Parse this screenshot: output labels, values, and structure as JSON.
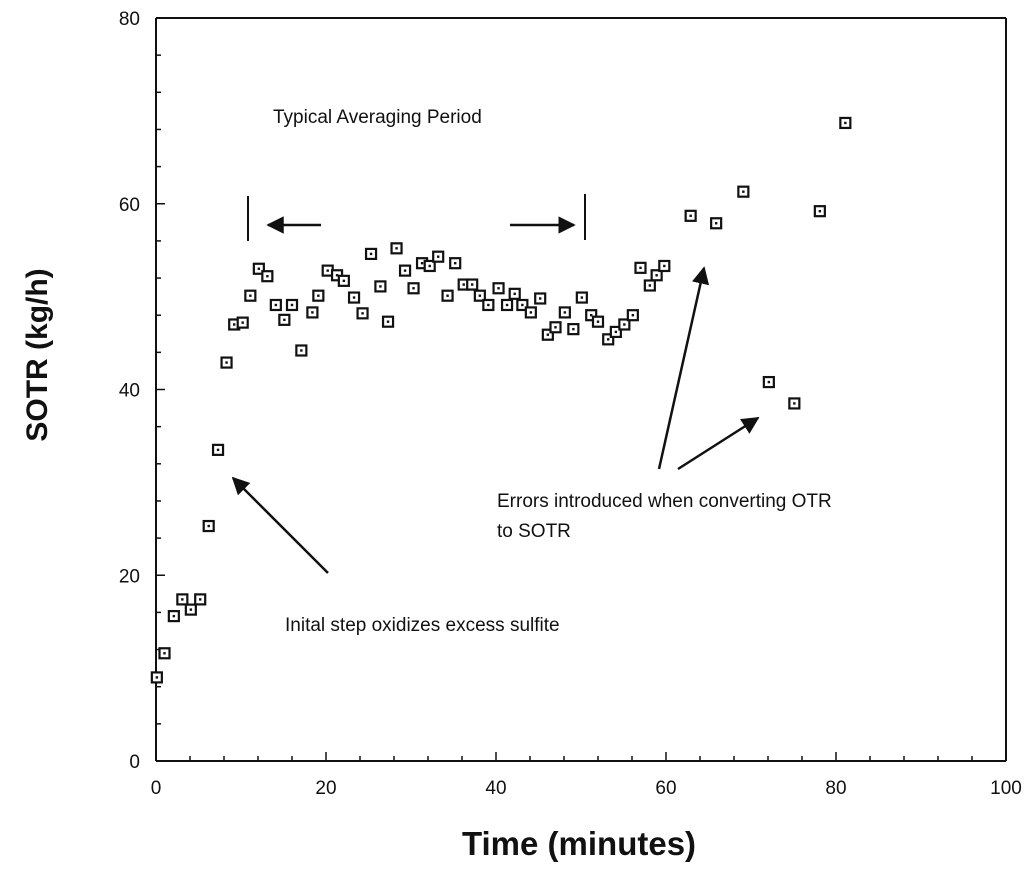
{
  "chart_data": {
    "type": "scatter",
    "title": "",
    "xlabel": "Time (minutes)",
    "ylabel": "SOTR  (kg/h)",
    "xlim": [
      0,
      100
    ],
    "ylim": [
      0,
      80
    ],
    "x_ticks": [
      0,
      20,
      40,
      60,
      80,
      100
    ],
    "y_ticks": [
      0,
      20,
      40,
      60,
      80
    ],
    "x_tick_labels": [
      "0",
      "20",
      "40",
      "60",
      "80",
      "100"
    ],
    "y_tick_labels": [
      "0",
      "20",
      "40",
      "60",
      "80"
    ],
    "grid": false,
    "legend": "none",
    "marker": "open-square",
    "series": [
      {
        "points": [
          [
            0.1,
            9.0
          ],
          [
            1.0,
            11.6
          ],
          [
            2.1,
            15.6
          ],
          [
            3.1,
            17.4
          ],
          [
            4.1,
            16.3
          ],
          [
            5.2,
            17.4
          ],
          [
            6.2,
            25.3
          ],
          [
            7.3,
            33.5
          ],
          [
            8.3,
            42.9
          ],
          [
            9.2,
            47.0
          ],
          [
            10.2,
            47.2
          ],
          [
            11.1,
            50.1
          ],
          [
            12.1,
            53.0
          ],
          [
            13.1,
            52.2
          ],
          [
            14.1,
            49.1
          ],
          [
            15.1,
            47.5
          ],
          [
            16.0,
            49.1
          ],
          [
            17.1,
            44.2
          ],
          [
            18.4,
            48.3
          ],
          [
            19.1,
            50.1
          ],
          [
            20.2,
            52.8
          ],
          [
            21.3,
            52.3
          ],
          [
            22.1,
            51.7
          ],
          [
            23.3,
            49.9
          ],
          [
            24.3,
            48.2
          ],
          [
            25.3,
            54.6
          ],
          [
            26.4,
            51.1
          ],
          [
            27.3,
            47.3
          ],
          [
            28.3,
            55.2
          ],
          [
            29.3,
            52.8
          ],
          [
            30.3,
            50.9
          ],
          [
            31.3,
            53.6
          ],
          [
            32.2,
            53.3
          ],
          [
            33.2,
            54.3
          ],
          [
            34.3,
            50.1
          ],
          [
            35.2,
            53.6
          ],
          [
            36.2,
            51.3
          ],
          [
            37.2,
            51.3
          ],
          [
            38.1,
            50.1
          ],
          [
            39.1,
            49.1
          ],
          [
            40.3,
            50.9
          ],
          [
            41.3,
            49.1
          ],
          [
            42.2,
            50.3
          ],
          [
            43.1,
            49.1
          ],
          [
            44.1,
            48.3
          ],
          [
            45.2,
            49.8
          ],
          [
            46.1,
            45.9
          ],
          [
            47.0,
            46.7
          ],
          [
            48.1,
            48.3
          ],
          [
            49.1,
            46.5
          ],
          [
            50.1,
            49.9
          ],
          [
            51.2,
            48.0
          ],
          [
            52.0,
            47.3
          ],
          [
            53.2,
            45.4
          ],
          [
            54.1,
            46.2
          ],
          [
            55.1,
            47.0
          ],
          [
            56.1,
            48.0
          ],
          [
            57.0,
            53.1
          ],
          [
            58.1,
            51.2
          ],
          [
            58.9,
            52.3
          ],
          [
            59.8,
            53.3
          ],
          [
            62.9,
            58.7
          ],
          [
            65.9,
            57.9
          ],
          [
            69.1,
            61.3
          ],
          [
            72.1,
            40.8
          ],
          [
            75.1,
            38.5
          ],
          [
            78.1,
            59.2
          ],
          [
            81.1,
            68.7
          ]
        ]
      }
    ],
    "annotations": [
      {
        "text": "Typical Averaging Period"
      },
      {
        "text": "Errors introduced when converting OTR"
      },
      {
        "text": "to SOTR"
      },
      {
        "text": "Inital step oxidizes excess sulfite"
      }
    ]
  }
}
